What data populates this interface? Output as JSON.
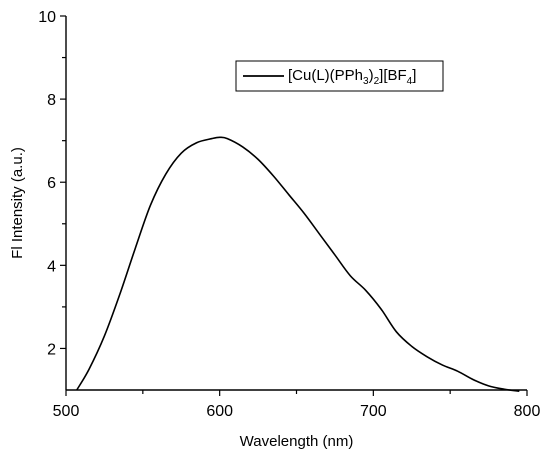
{
  "chart_data": {
    "type": "line",
    "title": "",
    "xlabel": "Wavelength (nm)",
    "ylabel": "Fl Intensity (a.u.)",
    "xlim": [
      500,
      800
    ],
    "ylim": [
      1,
      10
    ],
    "x_ticks": [
      500,
      600,
      700,
      800
    ],
    "y_ticks": [
      2,
      4,
      6,
      8,
      10
    ],
    "grid": false,
    "legend_position": "top-right",
    "legend": {
      "prefix": "[Cu(L)(PPh",
      "sub1": "3",
      "mid1": ")",
      "sub2": "2",
      "mid2": "][BF",
      "sub3": "4",
      "suffix": "]"
    },
    "series": [
      {
        "color": "#000000",
        "x": [
          507,
          515,
          525,
          535,
          545,
          555,
          565,
          575,
          585,
          595,
          600,
          605,
          615,
          625,
          635,
          645,
          655,
          665,
          675,
          685,
          695,
          705,
          715,
          725,
          735,
          745,
          755,
          765,
          775,
          785,
          795
        ],
        "y": [
          1.0,
          1.5,
          2.3,
          3.3,
          4.4,
          5.45,
          6.2,
          6.7,
          6.95,
          7.05,
          7.08,
          7.05,
          6.85,
          6.55,
          6.15,
          5.7,
          5.25,
          4.75,
          4.25,
          3.75,
          3.4,
          2.95,
          2.4,
          2.05,
          1.8,
          1.6,
          1.45,
          1.25,
          1.1,
          1.02,
          0.97
        ]
      }
    ]
  }
}
